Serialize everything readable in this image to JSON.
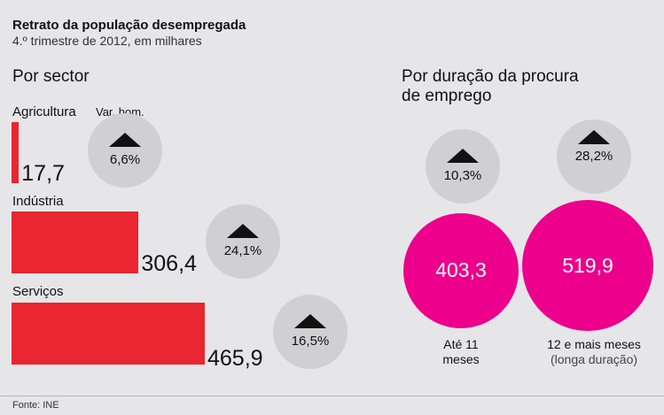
{
  "title": "Retrato da população desempregada",
  "subtitle": "4.º trimestre de 2012, em milhares",
  "source": "Fonte: INE",
  "colors": {
    "bar": "#ea2630",
    "bubble": "#ec008c",
    "change_circle": "#d0d0d2"
  },
  "chart_data": [
    {
      "type": "bar",
      "title": "Por sector",
      "change_label": "Var. hom.",
      "unit": "milhares",
      "categories": [
        "Agricultura",
        "Indústria",
        "Serviços"
      ],
      "values": [
        17.7,
        306.4,
        465.9
      ],
      "value_labels": [
        "17,7",
        "306,4",
        "465,9"
      ],
      "changes": [
        "6,6%",
        "24,1%",
        "16,5%"
      ],
      "change_direction": [
        "up",
        "up",
        "up"
      ]
    },
    {
      "type": "bubble",
      "title": "Por duração da procura de emprego",
      "title_lines": [
        "Por duração da procura",
        "de emprego"
      ],
      "categories": [
        "Até 11 meses",
        "12 e mais meses (longa duração)"
      ],
      "label_lines": [
        [
          "Até 11",
          "meses"
        ],
        [
          "12 e mais meses",
          "(longa duração)"
        ]
      ],
      "values": [
        403.3,
        519.9
      ],
      "value_labels": [
        "403,3",
        "519,9"
      ],
      "changes": [
        "10,3%",
        "28,2%"
      ],
      "change_direction": [
        "up",
        "up"
      ]
    }
  ]
}
